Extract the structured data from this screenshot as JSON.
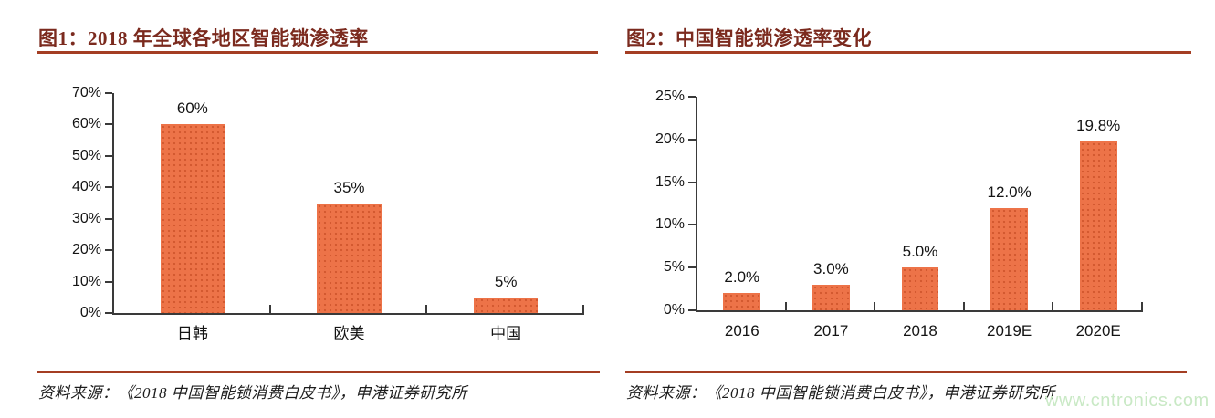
{
  "watermark": {
    "text": "www.cntronics.com"
  },
  "figures": [
    {
      "title": "图1：2018 年全球各地区智能锁渗透率",
      "source": "资料来源：《2018 中国智能锁消费白皮书》，申港证券研究所"
    },
    {
      "title": "图2：中国智能锁渗透率变化",
      "source": "资料来源：《2018 中国智能锁消费白皮书》，申港证券研究所"
    }
  ],
  "chart_data": [
    {
      "type": "bar",
      "title": "图1：2018 年全球各地区智能锁渗透率",
      "categories": [
        "日韩",
        "欧美",
        "中国"
      ],
      "values": [
        60,
        35,
        5
      ],
      "bar_labels": [
        "60%",
        "35%",
        "5%"
      ],
      "xlabel": "",
      "ylabel": "",
      "ylim": [
        0,
        70
      ],
      "ytick_step": 10,
      "ytick_labels": [
        "0%",
        "10%",
        "20%",
        "30%",
        "40%",
        "50%",
        "60%",
        "70%"
      ],
      "grid": false,
      "legend": false
    },
    {
      "type": "bar",
      "title": "图2：中国智能锁渗透率变化",
      "categories": [
        "2016",
        "2017",
        "2018",
        "2019E",
        "2020E"
      ],
      "values": [
        2.0,
        3.0,
        5.0,
        12.0,
        19.8
      ],
      "bar_labels": [
        "2.0%",
        "3.0%",
        "5.0%",
        "12.0%",
        "19.8%"
      ],
      "xlabel": "",
      "ylabel": "",
      "ylim": [
        0,
        25
      ],
      "ytick_step": 5,
      "ytick_labels": [
        "0%",
        "5%",
        "10%",
        "15%",
        "20%",
        "25%"
      ],
      "grid": false,
      "legend": false
    }
  ],
  "colors": {
    "bar_fill": "#ed7348",
    "bar_dot": "#d2582e",
    "title_text": "#7b2a1e",
    "rule": "#a43e23",
    "axis": "#3a3a3a",
    "tick_label": "#141414",
    "watermark": "#c9e9c5"
  }
}
